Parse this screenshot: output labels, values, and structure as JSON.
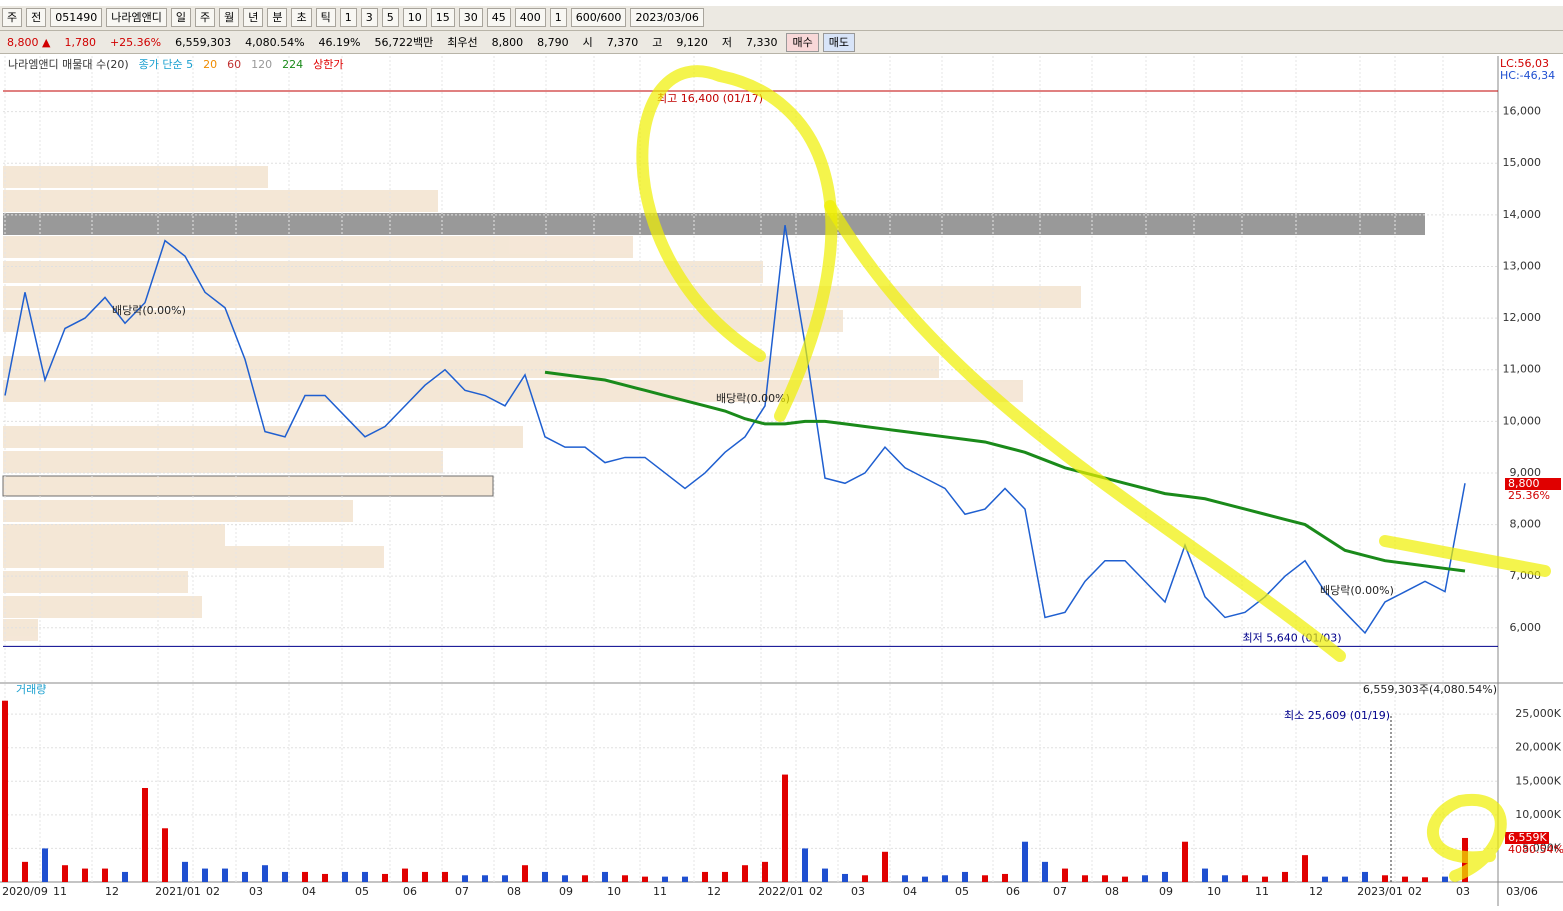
{
  "toolbar": {
    "items": [
      "주",
      "전",
      "051490",
      "나라엠앤디",
      "일",
      "주",
      "월",
      "년",
      "분",
      "초",
      "틱",
      "1",
      "3",
      "5",
      "10",
      "15",
      "30",
      "45",
      "400",
      "1",
      "600/600",
      "2023/03/06"
    ]
  },
  "quote": {
    "items": [
      "8,800 ▲",
      "1,780",
      "+25.36%",
      "6,559,303",
      "4,080.54%",
      "46.19%",
      "56,722백만",
      "최우선",
      "8,800",
      "8,790",
      "시",
      "7,370",
      "고",
      "9,120",
      "저",
      "7,330"
    ],
    "buttons": [
      "매수",
      "매도"
    ]
  },
  "x_labels": [
    "2020/09",
    "11",
    "12",
    "2021/01",
    "02",
    "03",
    "04",
    "05",
    "06",
    "07",
    "08",
    "09",
    "10",
    "11",
    "12",
    "2022/01",
    "02",
    "03",
    "04",
    "05",
    "06",
    "07",
    "08",
    "09",
    "10",
    "11",
    "12",
    "2023/01",
    "02",
    "03",
    "03/06"
  ],
  "chart_data": [
    {
      "type": "line",
      "legend": [
        "나라엠앤디 매물대 수(20)",
        "종가 단순 5",
        "20",
        "60",
        "120",
        "224",
        "상한가"
      ],
      "legend_colors": [
        "#333333",
        "#1aa0d0",
        "#f08c00",
        "#c03030",
        "#999999",
        "#1a8a1a",
        "#e00000"
      ],
      "ylim": [
        4950,
        17000
      ],
      "yticks": [
        {
          "value": 6000,
          "label": "6,000"
        },
        {
          "value": 7000,
          "label": "7,000"
        },
        {
          "value": 8000,
          "label": "8,000"
        },
        {
          "value": 9000,
          "label": "9,000"
        },
        {
          "value": 10000,
          "label": "10,000"
        },
        {
          "value": 11000,
          "label": "11,000"
        },
        {
          "value": 12000,
          "label": "12,000"
        },
        {
          "value": 13000,
          "label": "13,000"
        },
        {
          "value": 14000,
          "label": "14,000"
        },
        {
          "value": 15000,
          "label": "15,000"
        },
        {
          "value": 16000,
          "label": "16,000"
        }
      ],
      "color": "#1f5fd0",
      "ma_color": "#1a8a1a",
      "closes": [
        10500,
        12500,
        10800,
        11800,
        12000,
        12400,
        11900,
        12300,
        13500,
        13200,
        12500,
        12200,
        11200,
        9800,
        9700,
        10500,
        10500,
        10100,
        9700,
        9900,
        10300,
        10700,
        11000,
        10600,
        10500,
        10300,
        10900,
        9700,
        9500,
        9500,
        9200,
        9300,
        9300,
        9000,
        8700,
        9000,
        9400,
        9700,
        10300,
        13800,
        11500,
        8900,
        8800,
        9000,
        9500,
        9100,
        8900,
        8700,
        8200,
        8300,
        8700,
        8300,
        6200,
        6300,
        6900,
        7300,
        7300,
        6900,
        6500,
        7600,
        6600,
        6200,
        6300,
        6600,
        7000,
        7300,
        6700,
        6300,
        5900,
        6500,
        6700,
        6900,
        6700,
        8800
      ],
      "ma224": [
        null,
        null,
        null,
        null,
        null,
        null,
        null,
        null,
        null,
        null,
        null,
        null,
        null,
        null,
        null,
        null,
        null,
        null,
        null,
        null,
        null,
        null,
        null,
        null,
        null,
        null,
        null,
        10950,
        10900,
        10850,
        10800,
        10700,
        10600,
        10500,
        10400,
        10300,
        10200,
        10050,
        9950,
        9950,
        10000,
        10000,
        9950,
        9900,
        9850,
        9800,
        9750,
        9700,
        9650,
        9600,
        9500,
        9400,
        9250,
        9100,
        9000,
        8900,
        8800,
        8700,
        8600,
        8550,
        8500,
        8400,
        8300,
        8200,
        8100,
        8000,
        7750,
        7500,
        7400,
        7300,
        7250,
        7200,
        7150,
        7100
      ],
      "high": {
        "label": "최고 16,400 (01/17)",
        "value": 16400
      },
      "low": {
        "label": "최저 5,640 (01/03)",
        "value": 5640
      },
      "annotations": [
        "배당락(0.00%)",
        "배당락(0.00%)",
        "배당락(0.00%)"
      ],
      "side_labels": [
        "LC:56,03",
        "HC:-46,34"
      ],
      "last_price": [
        "8,800",
        "25.36%"
      ]
    },
    {
      "type": "bar",
      "title": "거래량",
      "ylim": [
        0,
        28000
      ],
      "yticks": [
        {
          "value": 5000,
          "label": "5,000K"
        },
        {
          "value": 10000,
          "label": "10,000K"
        },
        {
          "value": 15000,
          "label": "15,000K"
        },
        {
          "value": 20000,
          "label": "20,000K"
        },
        {
          "value": 25000,
          "label": "25,000K"
        }
      ],
      "values": [
        27000,
        3000,
        5000,
        2500,
        2000,
        2000,
        1500,
        14000,
        8000,
        3000,
        2000,
        2000,
        1500,
        2500,
        1500,
        1500,
        1200,
        1500,
        1500,
        1200,
        2000,
        1500,
        1500,
        1000,
        1000,
        1000,
        2500,
        1500,
        1000,
        1000,
        1500,
        1000,
        800,
        800,
        800,
        1500,
        1500,
        2500,
        3000,
        16000,
        5000,
        2000,
        1200,
        1000,
        4500,
        1000,
        800,
        1000,
        1500,
        1000,
        1200,
        6000,
        3000,
        2000,
        1000,
        1000,
        800,
        1000,
        1500,
        6000,
        2000,
        1000,
        1000,
        800,
        1500,
        4000,
        800,
        800,
        1500,
        1000,
        800,
        700,
        800,
        6559
      ],
      "header": "6,559,303주(4,080.54%)",
      "min_note": "최소 25,609 (01/19)",
      "last_label": [
        "6,559K",
        "4080.54%"
      ]
    }
  ]
}
